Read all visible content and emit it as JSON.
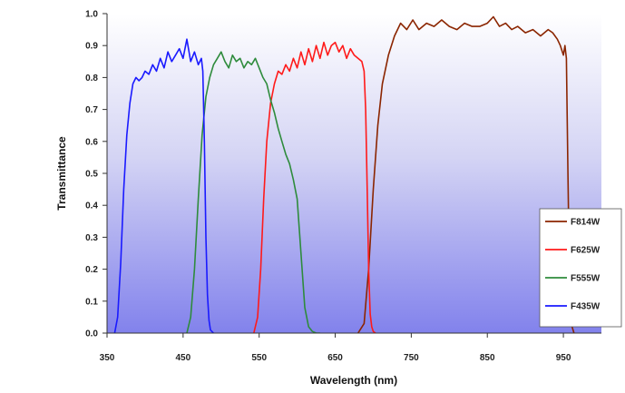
{
  "chart_data": {
    "type": "line",
    "xlabel": "Wavelength (nm)",
    "ylabel": "Transmittance",
    "xlim": [
      350,
      1000
    ],
    "ylim": [
      0.0,
      1.0
    ],
    "x_ticks": [
      350,
      450,
      550,
      650,
      750,
      850,
      950
    ],
    "x_tick_labels": [
      "350",
      "450",
      "550",
      "650",
      "750",
      "850",
      "950"
    ],
    "y_ticks": [
      0.0,
      0.1,
      0.2,
      0.3,
      0.4,
      0.5,
      0.6,
      0.7,
      0.8,
      0.9,
      1.0
    ],
    "y_tick_labels": [
      "0.0",
      "0.1",
      "0.2",
      "0.3",
      "0.4",
      "0.5",
      "0.6",
      "0.7",
      "0.8",
      "0.9",
      "1.0"
    ],
    "grid": false,
    "legend_position": "bottom-right",
    "series": [
      {
        "name": "F814W",
        "color": "#8b2500",
        "x": [
          680,
          688,
          694,
          700,
          706,
          712,
          720,
          728,
          736,
          744,
          752,
          760,
          770,
          780,
          790,
          800,
          810,
          820,
          830,
          840,
          850,
          858,
          866,
          874,
          882,
          890,
          900,
          910,
          920,
          930,
          936,
          942,
          946,
          950,
          952,
          954,
          956,
          958,
          960,
          964
        ],
        "y": [
          0.0,
          0.03,
          0.2,
          0.45,
          0.65,
          0.78,
          0.87,
          0.93,
          0.97,
          0.95,
          0.98,
          0.95,
          0.97,
          0.96,
          0.98,
          0.96,
          0.95,
          0.97,
          0.96,
          0.96,
          0.97,
          0.99,
          0.96,
          0.97,
          0.95,
          0.96,
          0.94,
          0.95,
          0.93,
          0.95,
          0.94,
          0.92,
          0.9,
          0.87,
          0.9,
          0.86,
          0.5,
          0.15,
          0.03,
          0.0
        ]
      },
      {
        "name": "F625W",
        "color": "#ff1a1a",
        "x": [
          543,
          548,
          552,
          556,
          560,
          565,
          570,
          575,
          580,
          585,
          590,
          595,
          600,
          605,
          610,
          615,
          620,
          625,
          630,
          635,
          640,
          645,
          650,
          655,
          660,
          665,
          670,
          675,
          680,
          685,
          688,
          690,
          692,
          694,
          696,
          698,
          700,
          703
        ],
        "y": [
          0.0,
          0.05,
          0.2,
          0.42,
          0.6,
          0.72,
          0.78,
          0.82,
          0.81,
          0.84,
          0.82,
          0.86,
          0.83,
          0.88,
          0.84,
          0.89,
          0.85,
          0.9,
          0.86,
          0.91,
          0.87,
          0.9,
          0.91,
          0.88,
          0.9,
          0.86,
          0.89,
          0.87,
          0.86,
          0.85,
          0.82,
          0.7,
          0.45,
          0.2,
          0.06,
          0.02,
          0.005,
          0.0
        ]
      },
      {
        "name": "F555W",
        "color": "#2e8b3c",
        "x": [
          455,
          460,
          465,
          470,
          475,
          480,
          485,
          490,
          495,
          500,
          505,
          510,
          515,
          520,
          525,
          530,
          535,
          540,
          545,
          550,
          555,
          560,
          565,
          570,
          575,
          580,
          585,
          590,
          595,
          600,
          605,
          610,
          615,
          620,
          625,
          630
        ],
        "y": [
          0.0,
          0.05,
          0.2,
          0.42,
          0.62,
          0.74,
          0.8,
          0.84,
          0.86,
          0.88,
          0.85,
          0.83,
          0.87,
          0.85,
          0.86,
          0.83,
          0.85,
          0.84,
          0.86,
          0.83,
          0.8,
          0.78,
          0.73,
          0.69,
          0.64,
          0.6,
          0.56,
          0.53,
          0.48,
          0.42,
          0.25,
          0.08,
          0.02,
          0.005,
          0.0,
          0.0
        ]
      },
      {
        "name": "F435W",
        "color": "#1a1aff",
        "x": [
          360,
          364,
          368,
          372,
          376,
          380,
          384,
          388,
          392,
          396,
          400,
          405,
          410,
          415,
          420,
          425,
          430,
          435,
          440,
          445,
          450,
          455,
          460,
          465,
          470,
          474,
          476,
          478,
          480,
          482,
          484,
          486,
          490
        ],
        "y": [
          0.0,
          0.05,
          0.22,
          0.45,
          0.62,
          0.72,
          0.78,
          0.8,
          0.79,
          0.8,
          0.82,
          0.81,
          0.84,
          0.82,
          0.86,
          0.83,
          0.88,
          0.85,
          0.87,
          0.89,
          0.86,
          0.92,
          0.85,
          0.88,
          0.84,
          0.86,
          0.82,
          0.6,
          0.3,
          0.12,
          0.04,
          0.01,
          0.0
        ]
      }
    ]
  }
}
